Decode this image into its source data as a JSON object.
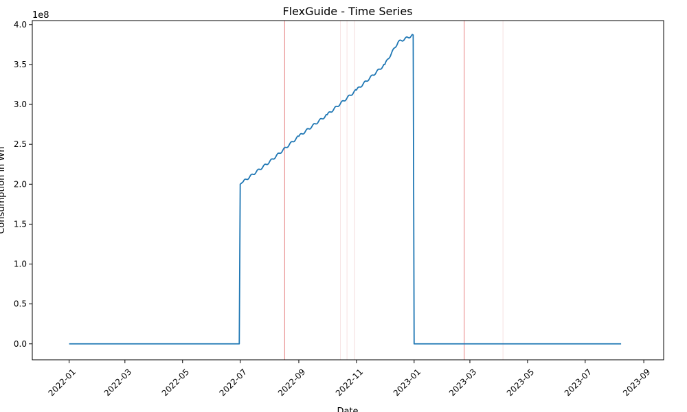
{
  "chart_data": {
    "type": "line",
    "title": "FlexGuide - Time Series",
    "xlabel": "Date",
    "ylabel": "Consumption in Wh",
    "y_offset_label": "1e8",
    "y_multiplier": 100000000,
    "xlim": [
      "2021-11-23",
      "2023-09-22"
    ],
    "ylim": [
      -20000000,
      405000000
    ],
    "x_ticks": [
      "2022-01",
      "2022-03",
      "2022-05",
      "2022-07",
      "2022-09",
      "2022-11",
      "2023-01",
      "2023-03",
      "2023-05",
      "2023-07",
      "2023-09"
    ],
    "y_ticks": [
      "0.0",
      "0.5",
      "1.0",
      "1.5",
      "2.0",
      "2.5",
      "3.0",
      "3.5",
      "4.0"
    ],
    "grid": false,
    "line_color": "#1f77b4",
    "series": [
      {
        "values": [
          {
            "x": "2022-01-01",
            "y": 0
          },
          {
            "x": "2022-06-30",
            "y": 0
          },
          {
            "x": "2022-07-01",
            "y": 200000000
          },
          {
            "x": "2022-07-04",
            "y": 203000000
          },
          {
            "x": "2022-08-01",
            "y": 228000000
          },
          {
            "x": "2022-09-01",
            "y": 260000000
          },
          {
            "x": "2022-10-01",
            "y": 287000000
          },
          {
            "x": "2022-11-01",
            "y": 318000000
          },
          {
            "x": "2022-12-01",
            "y": 350000000
          },
          {
            "x": "2022-12-15",
            "y": 378000000
          },
          {
            "x": "2022-12-31",
            "y": 387000000
          },
          {
            "x": "2023-01-01",
            "y": 0
          },
          {
            "x": "2023-08-08",
            "y": 0
          }
        ]
      }
    ],
    "markers": [
      {
        "x": "2022-08-17",
        "color": "#e06060",
        "opacity": 0.8
      },
      {
        "x": "2022-10-15",
        "color": "#e8b0b0",
        "opacity": 0.35
      },
      {
        "x": "2022-10-22",
        "color": "#e8b0b0",
        "opacity": 0.35
      },
      {
        "x": "2022-10-30",
        "color": "#e8b0b0",
        "opacity": 0.45
      },
      {
        "x": "2023-02-23",
        "color": "#e06060",
        "opacity": 0.8
      },
      {
        "x": "2023-04-05",
        "color": "#e8b0b0",
        "opacity": 0.4
      }
    ]
  }
}
